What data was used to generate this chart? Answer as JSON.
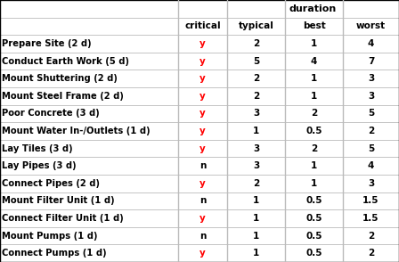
{
  "title_header": "duration",
  "rows": [
    {
      "task": "Prepare Site (2 d)",
      "critical": "y",
      "typical": "2",
      "best": "1",
      "worst": "4"
    },
    {
      "task": "Conduct Earth Work (5 d)",
      "critical": "y",
      "typical": "5",
      "best": "4",
      "worst": "7"
    },
    {
      "task": "Mount Shuttering (2 d)",
      "critical": "y",
      "typical": "2",
      "best": "1",
      "worst": "3"
    },
    {
      "task": "Mount Steel Frame (2 d)",
      "critical": "y",
      "typical": "2",
      "best": "1",
      "worst": "3"
    },
    {
      "task": "Poor Concrete (3 d)",
      "critical": "y",
      "typical": "3",
      "best": "2",
      "worst": "5"
    },
    {
      "task": "Mount Water In-/Outlets (1 d)",
      "critical": "y",
      "typical": "1",
      "best": "0.5",
      "worst": "2"
    },
    {
      "task": "Lay Tiles (3 d)",
      "critical": "y",
      "typical": "3",
      "best": "2",
      "worst": "5"
    },
    {
      "task": "Lay Pipes (3 d)",
      "critical": "n",
      "typical": "3",
      "best": "1",
      "worst": "4"
    },
    {
      "task": "Connect Pipes (2 d)",
      "critical": "y",
      "typical": "2",
      "best": "1",
      "worst": "3"
    },
    {
      "task": "Mount Filter Unit (1 d)",
      "critical": "n",
      "typical": "1",
      "best": "0.5",
      "worst": "1.5"
    },
    {
      "task": "Connect Filter Unit (1 d)",
      "critical": "y",
      "typical": "1",
      "best": "0.5",
      "worst": "1.5"
    },
    {
      "task": "Mount Pumps (1 d)",
      "critical": "n",
      "typical": "1",
      "best": "0.5",
      "worst": "2"
    },
    {
      "task": "Connect Pumps (1 d)",
      "critical": "y",
      "typical": "1",
      "best": "0.5",
      "worst": "2"
    }
  ],
  "bg_color": "#ffffff",
  "grid_color": "#bbbbbb",
  "text_color": "#000000",
  "critical_yes_color": "#ff0000",
  "critical_no_color": "#000000",
  "figsize": [
    4.48,
    2.94
  ],
  "dpi": 100,
  "font_family": "DejaVu Sans"
}
